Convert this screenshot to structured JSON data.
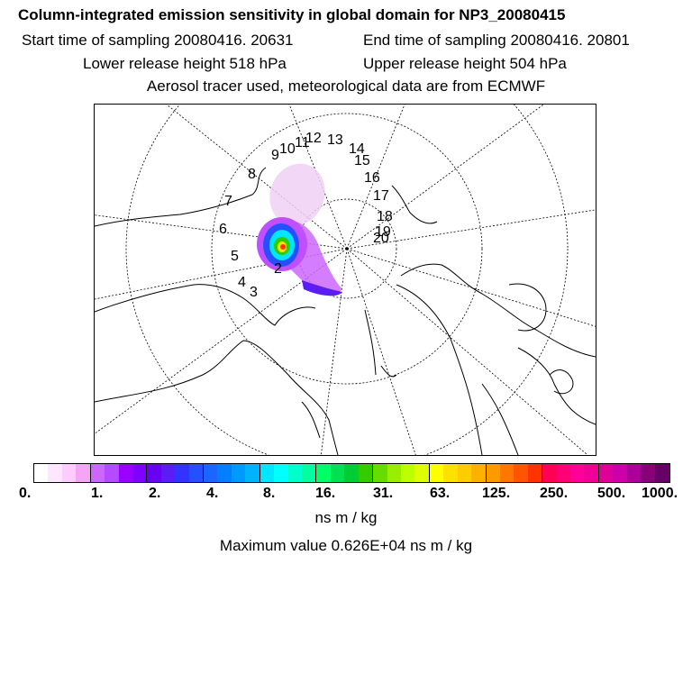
{
  "header": {
    "title": "Column-integrated emission sensitivity in global domain for NP3_20080415",
    "start_time": "Start time of sampling 20080416. 20631",
    "end_time": "End time of sampling 20080416. 20801",
    "lower_height": "Lower release height  518 hPa",
    "upper_height": "Upper release height  504 hPa",
    "tracer_info": "Aerosol tracer used, meteorological data are from ECMWF"
  },
  "map": {
    "projection": "polar stereographic",
    "trajectory_labels": [
      "2",
      "3",
      "4",
      "5",
      "6",
      "7",
      "8",
      "9",
      "10",
      "11",
      "12",
      "13",
      "14",
      "15",
      "16",
      "17",
      "18",
      "19",
      "20"
    ]
  },
  "colorbar": {
    "tick_labels": [
      "0.",
      "1.",
      "2.",
      "4.",
      "8.",
      "16.",
      "31.",
      "63.",
      "125.",
      "250.",
      "500.",
      "1000."
    ],
    "colors": [
      "#ffffff",
      "#ffe6ff",
      "#ffccff",
      "#f5a5f5",
      "#cc66ff",
      "#b44bff",
      "#9900ff",
      "#8000ff",
      "#6a00f0",
      "#5a1ef5",
      "#3333ff",
      "#2450ff",
      "#1a66ff",
      "#0080ff",
      "#0099ff",
      "#00b3ff",
      "#00e6ff",
      "#00ffff",
      "#00ffcc",
      "#00ffa0",
      "#00ff66",
      "#00e050",
      "#00cc33",
      "#33cc00",
      "#66dd00",
      "#99ee00",
      "#bbff00",
      "#ddff00",
      "#ffff00",
      "#ffe000",
      "#ffcc00",
      "#ffb000",
      "#ff9900",
      "#ff7700",
      "#ff5500",
      "#ff3300",
      "#ff0055",
      "#ff0077",
      "#ff0099",
      "#ee0099",
      "#dd0099",
      "#cc00aa",
      "#aa0099",
      "#880077",
      "#660066"
    ],
    "unit": "ns m / kg"
  },
  "footer": {
    "max_value": "Maximum value  0.626E+04 ns m / kg"
  }
}
